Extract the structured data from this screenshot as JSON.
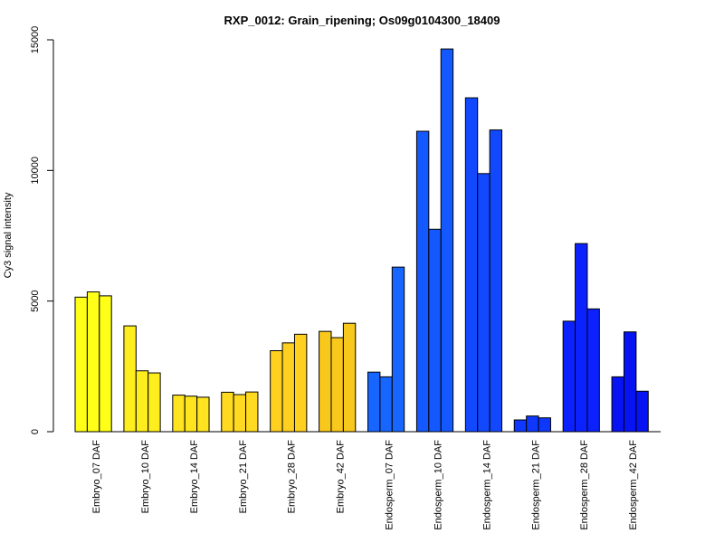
{
  "chart_data": {
    "type": "bar",
    "title": "RXP_0012: Grain_ripening; Os09g0104300_18409",
    "xlabel": "",
    "ylabel": "Cy3 signal intensity",
    "ylim": [
      0,
      15000
    ],
    "yticks": [
      0,
      5000,
      10000,
      15000
    ],
    "grid": false,
    "replicates_per_group": 3,
    "groups": [
      {
        "label": "Embryo_07 DAF",
        "color": "#FFFF18",
        "values": [
          5150,
          5350,
          5200
        ]
      },
      {
        "label": "Embryo_10 DAF",
        "color": "#FFEE1E",
        "values": [
          4050,
          2330,
          2250
        ]
      },
      {
        "label": "Embryo_14 DAF",
        "color": "#FFE41F",
        "values": [
          1400,
          1360,
          1320
        ]
      },
      {
        "label": "Embryo_21 DAF",
        "color": "#FFDA20",
        "values": [
          1510,
          1420,
          1520
        ]
      },
      {
        "label": "Embryo_28 DAF",
        "color": "#FFD01F",
        "values": [
          3100,
          3400,
          3730
        ]
      },
      {
        "label": "Embryo_42 DAF",
        "color": "#F9C81C",
        "values": [
          3840,
          3600,
          4150
        ]
      },
      {
        "label": "Endosperm_07 DAF",
        "color": "#1766FF",
        "values": [
          2280,
          2100,
          6300
        ]
      },
      {
        "label": "Endosperm_10 DAF",
        "color": "#1458FF",
        "values": [
          11500,
          7750,
          14650
        ]
      },
      {
        "label": "Endosperm_14 DAF",
        "color": "#1249FF",
        "values": [
          12780,
          9880,
          11550
        ]
      },
      {
        "label": "Endosperm_21 DAF",
        "color": "#0F38FF",
        "values": [
          450,
          600,
          530
        ]
      },
      {
        "label": "Endosperm_28 DAF",
        "color": "#0B22FF",
        "values": [
          4230,
          7200,
          4700
        ]
      },
      {
        "label": "Endosperm_42 DAF",
        "color": "#0713F2",
        "values": [
          2100,
          3820,
          1550
        ]
      }
    ]
  }
}
